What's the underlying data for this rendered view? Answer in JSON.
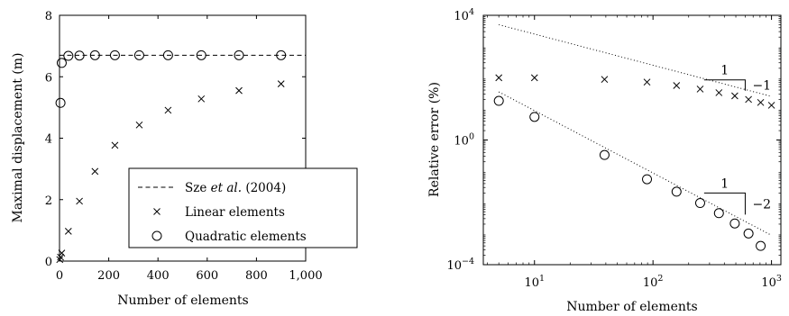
{
  "chart_data": [
    {
      "type": "scatter",
      "title": "",
      "xlabel": "Number of elements",
      "ylabel": "Maximal displacement (m)",
      "xlim": [
        0,
        1000
      ],
      "ylim": [
        0,
        8
      ],
      "xticks": [
        0,
        200,
        400,
        600,
        800,
        1000
      ],
      "xtick_labels": [
        "0",
        "200",
        "400",
        "600",
        "800",
        "1,000"
      ],
      "yticks": [
        0,
        2,
        4,
        6,
        8
      ],
      "ytick_labels": [
        "0",
        "2",
        "4",
        "6",
        "8"
      ],
      "grid": false,
      "legend_position": "bottom-right",
      "legend_ref": {
        "plain": "Sze ",
        "italic": "et al.",
        "suffix": " (2004)"
      },
      "series": [
        {
          "name": "Sze et al. (2004)",
          "style": "dashed-line",
          "x": [
            0,
            1000
          ],
          "y": [
            6.7,
            6.7
          ]
        },
        {
          "name": "Linear elements",
          "marker": "x",
          "x": [
            1,
            4,
            9,
            36,
            81,
            144,
            225,
            324,
            441,
            576,
            729,
            900
          ],
          "y": [
            0.05,
            0.13,
            0.26,
            0.97,
            1.95,
            2.92,
            3.77,
            4.43,
            4.91,
            5.28,
            5.55,
            5.77
          ]
        },
        {
          "name": "Quadratic elements",
          "marker": "circle",
          "x": [
            4,
            9,
            36,
            81,
            144,
            225,
            324,
            441,
            576,
            729,
            900
          ],
          "y": [
            5.15,
            6.45,
            6.68,
            6.69,
            6.7,
            6.7,
            6.7,
            6.7,
            6.7,
            6.7,
            6.7
          ]
        }
      ]
    },
    {
      "type": "scatter",
      "title": "",
      "xlabel": "Number of elements",
      "ylabel": "Relative error (%)",
      "xscale": "log",
      "yscale": "log",
      "xlim": [
        3.7,
        1200
      ],
      "ylim": [
        0.0001,
        10000
      ],
      "xticks": [
        10,
        100,
        1000
      ],
      "xtick_labels": [
        {
          "base": "10",
          "exp": "1"
        },
        {
          "base": "10",
          "exp": "2"
        },
        {
          "base": "10",
          "exp": "3"
        }
      ],
      "yticks": [
        0.0001,
        1,
        10000
      ],
      "ytick_labels": [
        {
          "base": "10",
          "exp": "−4"
        },
        {
          "base": "10",
          "exp": "0"
        },
        {
          "base": "10",
          "exp": "4"
        }
      ],
      "grid": false,
      "series": [
        {
          "name": "Linear elements",
          "marker": "x",
          "x": [
            5,
            10,
            39,
            89,
            158,
            250,
            360,
            490,
            640,
            810,
            1000
          ],
          "y": [
            99,
            99,
            88,
            72,
            56,
            43,
            33,
            26,
            20,
            16,
            13
          ]
        },
        {
          "name": "Quadratic elements",
          "marker": "circle",
          "x": [
            5,
            10,
            39,
            89,
            158,
            250,
            360,
            490,
            640,
            810
          ],
          "y": [
            18,
            5.5,
            0.33,
            0.055,
            0.022,
            0.0095,
            0.0045,
            0.0021,
            0.001,
            0.0004
          ]
        },
        {
          "name": "slope -1 reference",
          "style": "dotted-line",
          "x": [
            5,
            1000
          ],
          "y": [
            5000,
            25
          ]
        },
        {
          "name": "slope -2 reference",
          "style": "dotted-line",
          "x": [
            5,
            1000
          ],
          "y": [
            35,
            0.000875
          ]
        }
      ],
      "annotations": [
        {
          "type": "slope-triangle",
          "top_label": "1",
          "side_label": "−1",
          "x": [
            270,
            600
          ],
          "slope": -1,
          "y_start": 85
        },
        {
          "type": "slope-triangle",
          "top_label": "1",
          "side_label": "−2",
          "x": [
            270,
            600
          ],
          "slope": -2,
          "y_start": 0.02
        }
      ]
    }
  ]
}
